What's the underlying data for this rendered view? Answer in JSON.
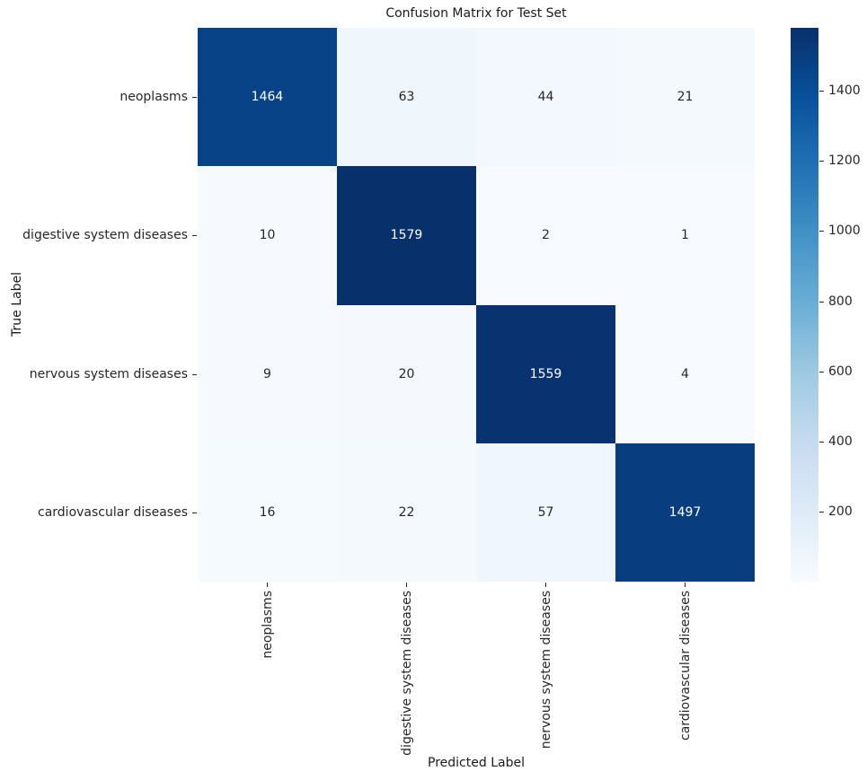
{
  "chart_data": {
    "type": "heatmap",
    "title": "Confusion Matrix for Test Set",
    "xlabel": "Predicted Label",
    "ylabel": "True Label",
    "x_categories": [
      "neoplasms",
      "digestive system diseases",
      "nervous system diseases",
      "cardiovascular diseases"
    ],
    "y_categories": [
      "neoplasms",
      "digestive system diseases",
      "nervous system diseases",
      "cardiovascular diseases"
    ],
    "matrix": [
      [
        1464,
        63,
        44,
        21
      ],
      [
        10,
        1579,
        2,
        1
      ],
      [
        9,
        20,
        1559,
        4
      ],
      [
        16,
        22,
        57,
        1497
      ]
    ],
    "vmin": 1,
    "vmax": 1579,
    "colormap_name": "Blues",
    "colormap_anchors": [
      "#f7fbff",
      "#deebf7",
      "#c6dbef",
      "#9ecae1",
      "#6baed6",
      "#4292c6",
      "#2171b5",
      "#08519c",
      "#08306b"
    ],
    "colorbar_ticks": [
      200,
      400,
      600,
      800,
      1000,
      1200,
      1400
    ],
    "annotation_text_light": "#ffffff",
    "annotation_text_dark": "#262626",
    "tick_color": "#262626",
    "grid": false,
    "legend_position": "right-colorbar"
  }
}
